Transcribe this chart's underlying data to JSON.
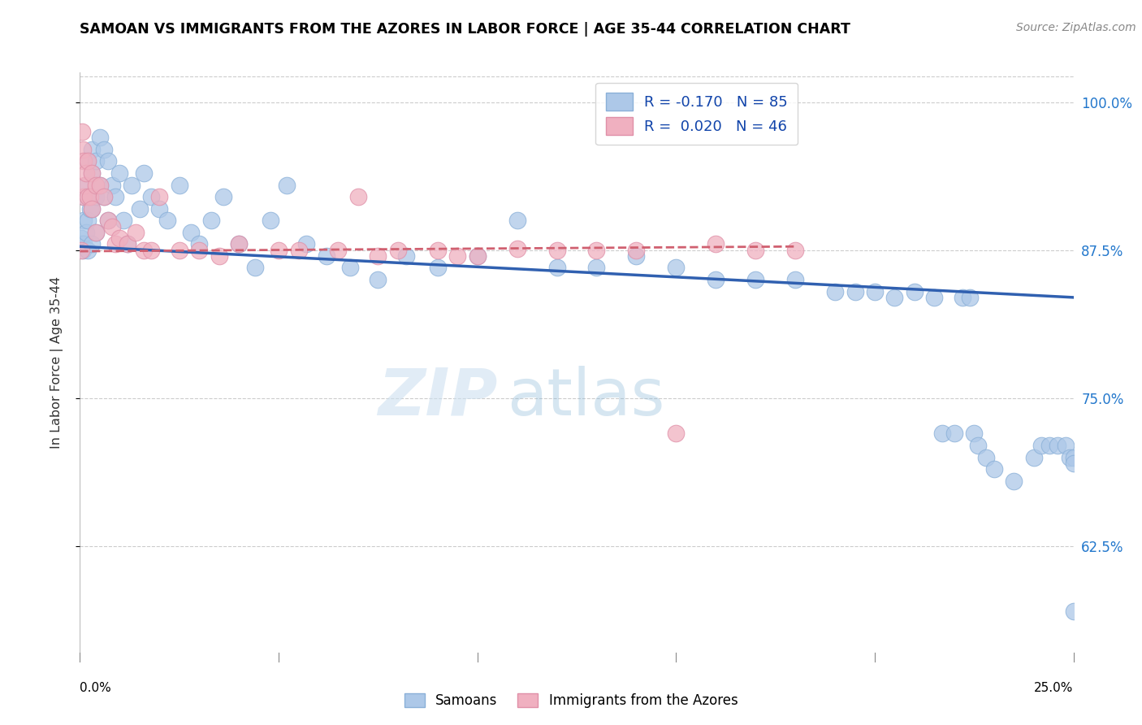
{
  "title": "SAMOAN VS IMMIGRANTS FROM THE AZORES IN LABOR FORCE | AGE 35-44 CORRELATION CHART",
  "source": "Source: ZipAtlas.com",
  "ylabel": "In Labor Force | Age 35-44",
  "yticks": [
    0.625,
    0.75,
    0.875,
    1.0
  ],
  "ytick_labels": [
    "62.5%",
    "75.0%",
    "87.5%",
    "100.0%"
  ],
  "xmin": 0.0,
  "xmax": 0.25,
  "ymin": 0.535,
  "ymax": 1.025,
  "watermark_zip": "ZIP",
  "watermark_atlas": "atlas",
  "blue_color": "#adc8e8",
  "pink_color": "#f0b0c0",
  "blue_edge": "#8ab0d8",
  "pink_edge": "#e090a8",
  "blue_line_color": "#3060b0",
  "pink_line_color": "#d06070",
  "legend_blue_label": "R = -0.170   N = 85",
  "legend_pink_label": "R =  0.020   N = 46",
  "bottom_legend_blue": "Samoans",
  "bottom_legend_pink": "Immigrants from the Azores",
  "samoans_x": [
    0.0004,
    0.0006,
    0.0008,
    0.001,
    0.001,
    0.001,
    0.0015,
    0.0015,
    0.002,
    0.002,
    0.002,
    0.002,
    0.0025,
    0.003,
    0.003,
    0.003,
    0.003,
    0.004,
    0.004,
    0.004,
    0.005,
    0.005,
    0.006,
    0.006,
    0.007,
    0.007,
    0.008,
    0.009,
    0.01,
    0.011,
    0.012,
    0.013,
    0.015,
    0.016,
    0.018,
    0.02,
    0.022,
    0.025,
    0.028,
    0.03,
    0.033,
    0.036,
    0.04,
    0.044,
    0.048,
    0.052,
    0.057,
    0.062,
    0.068,
    0.075,
    0.082,
    0.09,
    0.1,
    0.11,
    0.12,
    0.13,
    0.14,
    0.15,
    0.16,
    0.17,
    0.18,
    0.19,
    0.195,
    0.2,
    0.205,
    0.21,
    0.215,
    0.217,
    0.22,
    0.222,
    0.224,
    0.225,
    0.226,
    0.228,
    0.23,
    0.235,
    0.24,
    0.242,
    0.244,
    0.246,
    0.248,
    0.249,
    0.25,
    0.25,
    0.25
  ],
  "samoans_y": [
    0.885,
    0.88,
    0.875,
    0.92,
    0.9,
    0.88,
    0.93,
    0.89,
    0.95,
    0.92,
    0.9,
    0.875,
    0.91,
    0.96,
    0.94,
    0.91,
    0.88,
    0.95,
    0.92,
    0.89,
    0.97,
    0.93,
    0.96,
    0.92,
    0.95,
    0.9,
    0.93,
    0.92,
    0.94,
    0.9,
    0.88,
    0.93,
    0.91,
    0.94,
    0.92,
    0.91,
    0.9,
    0.93,
    0.89,
    0.88,
    0.9,
    0.92,
    0.88,
    0.86,
    0.9,
    0.93,
    0.88,
    0.87,
    0.86,
    0.85,
    0.87,
    0.86,
    0.87,
    0.9,
    0.86,
    0.86,
    0.87,
    0.86,
    0.85,
    0.85,
    0.85,
    0.84,
    0.84,
    0.84,
    0.835,
    0.84,
    0.835,
    0.72,
    0.72,
    0.835,
    0.835,
    0.72,
    0.71,
    0.7,
    0.69,
    0.68,
    0.7,
    0.71,
    0.71,
    0.71,
    0.71,
    0.7,
    0.7,
    0.695,
    0.57
  ],
  "azores_x": [
    0.0003,
    0.0005,
    0.0007,
    0.001,
    0.001,
    0.0012,
    0.0015,
    0.002,
    0.002,
    0.0025,
    0.003,
    0.003,
    0.004,
    0.004,
    0.005,
    0.006,
    0.007,
    0.008,
    0.009,
    0.01,
    0.012,
    0.014,
    0.016,
    0.018,
    0.02,
    0.025,
    0.03,
    0.035,
    0.04,
    0.05,
    0.055,
    0.065,
    0.07,
    0.075,
    0.08,
    0.09,
    0.095,
    0.1,
    0.11,
    0.12,
    0.13,
    0.14,
    0.15,
    0.16,
    0.17,
    0.18
  ],
  "azores_y": [
    0.875,
    0.975,
    0.96,
    0.95,
    0.92,
    0.93,
    0.94,
    0.95,
    0.92,
    0.92,
    0.94,
    0.91,
    0.93,
    0.89,
    0.93,
    0.92,
    0.9,
    0.895,
    0.88,
    0.885,
    0.88,
    0.89,
    0.875,
    0.875,
    0.92,
    0.875,
    0.875,
    0.87,
    0.88,
    0.875,
    0.875,
    0.875,
    0.92,
    0.87,
    0.875,
    0.875,
    0.87,
    0.87,
    0.876,
    0.875,
    0.875,
    0.875,
    0.72,
    0.88,
    0.875,
    0.875
  ],
  "blue_trendline_x": [
    0.0,
    0.25
  ],
  "blue_trendline_y": [
    0.878,
    0.835
  ],
  "pink_trendline_x": [
    0.0,
    0.18
  ],
  "pink_trendline_y": [
    0.874,
    0.878
  ]
}
